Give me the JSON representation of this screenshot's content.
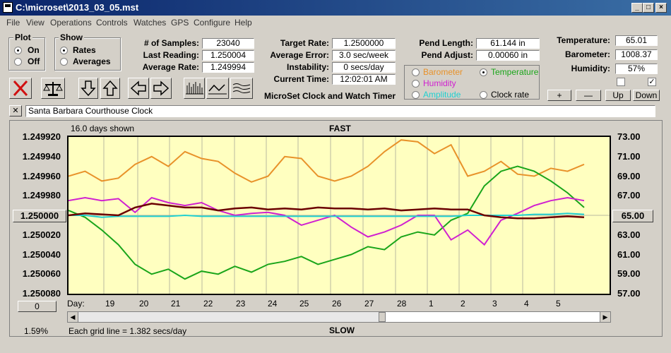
{
  "window": {
    "title": "C:\\microset\\2013_03_05.mst"
  },
  "menu": [
    "File",
    "View",
    "Operations",
    "Controls",
    "Watches",
    "GPS",
    "Configure",
    "Help"
  ],
  "plot_group": {
    "label": "Plot",
    "on": "On",
    "off": "Off",
    "selected": "On"
  },
  "show_group": {
    "label": "Show",
    "rates": "Rates",
    "averages": "Averages",
    "selected": "Rates"
  },
  "stats": {
    "samples_label": "# of Samples:",
    "samples": "23040",
    "last_label": "Last Reading:",
    "last": "1.250004",
    "avg_label": "Average Rate:",
    "avg": "1.249994"
  },
  "rates": {
    "target_label": "Target Rate:",
    "target": "1.2500000",
    "error_label": "Average Error:",
    "error": "3.0 sec/week",
    "instab_label": "Instability:",
    "instab": "0 secs/day",
    "time_label": "Current Time:",
    "time": "12:02:01 AM"
  },
  "app_caption": "MicroSet Clock and Watch Timer",
  "pend": {
    "length_label": "Pend Length:",
    "length": "61.144 in",
    "adjust_label": "Pend Adjust:",
    "adjust": "0.00060 in"
  },
  "env": {
    "temp_label": "Temperature:",
    "temp": "65.01",
    "baro_label": "Barometer:",
    "baro": "1008.37",
    "hum_label": "Humidity:",
    "hum": "57%"
  },
  "overlay": {
    "barometer": "Barometer",
    "temperature": "Temperature",
    "humidity": "Humidity",
    "amplitude": "Amplitude",
    "clock_rate": "Clock rate",
    "selected": "Temperature"
  },
  "colors": {
    "barometer": "#e8922a",
    "temperature": "#1aa51a",
    "humidity": "#d020d0",
    "amplitude": "#20d0d0",
    "clock_rate": "#6b0000"
  },
  "adjust_buttons": {
    "plus": "+",
    "minus": "—",
    "up": "Up",
    "down": "Down"
  },
  "description": "Santa Barbara Courthouse Clock",
  "close_label": "✕",
  "chart_data": {
    "type": "line",
    "days_shown": "16.0 days shown",
    "top_label": "FAST",
    "bottom_label": "SLOW",
    "grid_note": "Each grid line = 1.382 secs/day",
    "percent": "1.59%",
    "left_button": "0",
    "center_value": "1.250000",
    "right_button": "65.00",
    "xlabel": "Day:",
    "x_ticks": [
      "19",
      "20",
      "21",
      "22",
      "23",
      "24",
      "25",
      "26",
      "27",
      "28",
      "1",
      "2",
      "3",
      "4",
      "5"
    ],
    "y_ticks": [
      "1.249920",
      "1.249940",
      "1.249960",
      "1.249980",
      "1.250000",
      "1.250020",
      "1.250040",
      "1.250060",
      "1.250080"
    ],
    "y_right_ticks": [
      "73.00",
      "71.00",
      "69.00",
      "67.00",
      "65.00",
      "63.00",
      "61.00",
      "59.00",
      "57.00"
    ],
    "ylim": [
      1.24992,
      1.25008
    ],
    "y_right_lim": [
      73,
      57
    ],
    "series": [
      {
        "name": "Barometer",
        "color": "#e8922a",
        "values": [
          69.0,
          69.5,
          68.5,
          68.8,
          70.2,
          71.0,
          70.0,
          71.5,
          70.8,
          70.5,
          69.3,
          68.4,
          69.0,
          71.0,
          70.8,
          69.0,
          68.5,
          69.0,
          70.0,
          71.5,
          72.7,
          72.5,
          71.3,
          72.2,
          69.0,
          69.5,
          70.5,
          69.2,
          69.0,
          69.8,
          69.5,
          70.2
        ]
      },
      {
        "name": "Temperature",
        "color": "#1aa51a",
        "values": [
          65.5,
          64.8,
          63.5,
          62.0,
          60.0,
          59.0,
          59.5,
          58.5,
          59.3,
          59.0,
          59.8,
          59.2,
          60.0,
          60.3,
          60.8,
          60.0,
          60.5,
          61.0,
          61.8,
          61.5,
          62.8,
          63.3,
          63.0,
          64.5,
          65.2,
          68.0,
          69.5,
          70.0,
          69.5,
          68.5,
          67.3,
          65.8
        ]
      },
      {
        "name": "Humidity",
        "color": "#d020d0",
        "values": [
          66.5,
          66.8,
          66.5,
          66.7,
          65.3,
          66.8,
          66.3,
          66.0,
          66.3,
          65.5,
          65.0,
          65.2,
          65.3,
          65.0,
          64.0,
          64.5,
          65.0,
          63.8,
          62.8,
          63.3,
          64.0,
          65.0,
          65.0,
          62.5,
          63.5,
          62.0,
          64.5,
          65.2,
          66.0,
          66.5,
          66.8,
          66.5
        ]
      },
      {
        "name": "Amplitude",
        "color": "#20d0d0",
        "values": [
          65.0,
          65.0,
          64.8,
          64.9,
          64.9,
          64.9,
          64.9,
          65.0,
          64.9,
          64.9,
          64.9,
          64.9,
          64.9,
          64.9,
          64.9,
          64.9,
          64.9,
          64.9,
          64.9,
          64.9,
          64.9,
          64.9,
          64.9,
          64.9,
          65.0,
          65.0,
          65.0,
          65.0,
          65.1,
          65.1,
          65.2,
          65.1
        ]
      },
      {
        "name": "Clock rate",
        "color": "#6b0000",
        "values": [
          1.25,
          1.249998,
          1.249999,
          1.25,
          1.249992,
          1.249988,
          1.24999,
          1.249992,
          1.249992,
          1.249995,
          1.249993,
          1.249992,
          1.249994,
          1.249993,
          1.249994,
          1.249992,
          1.249993,
          1.249993,
          1.249994,
          1.249993,
          1.249995,
          1.249994,
          1.249993,
          1.249994,
          1.249994,
          1.25,
          1.250002,
          1.250003,
          1.250003,
          1.250002,
          1.250001,
          1.250002
        ]
      }
    ]
  }
}
